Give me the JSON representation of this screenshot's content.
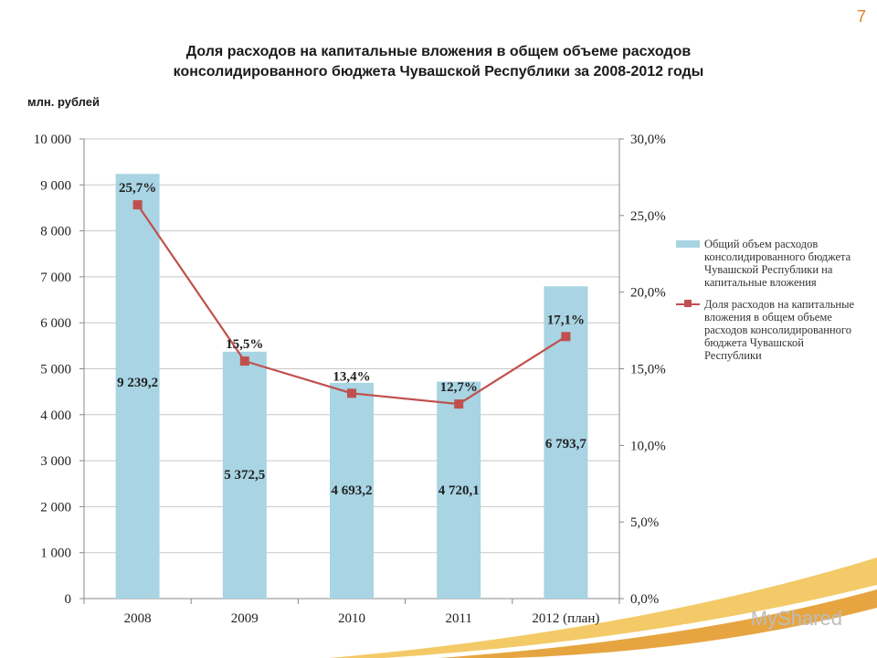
{
  "page_number": "7",
  "title_line1": "Доля расходов на капитальные вложения в общем объеме расходов",
  "title_line2": "консолидированного бюджета Чувашской Республики за 2008-2012 годы",
  "unit_label": "млн. рублей",
  "watermark": "MyShared",
  "colors": {
    "bar": "#a8d4e3",
    "line": "#c0504d",
    "grid": "#c8c8c8",
    "accent": "#d9822b"
  },
  "chart_data": {
    "type": "bar",
    "categories": [
      "2008",
      "2009",
      "2010",
      "2011",
      "2012  (план)"
    ],
    "series": [
      {
        "name": "Общий объем расходов консолидированного бюджета Чувашской Республики на капитальные вложения",
        "type": "bar",
        "axis": "left",
        "values": [
          9239.2,
          5372.5,
          4693.2,
          4720.1,
          6793.7
        ],
        "labels": [
          "9 239,2",
          "5 372,5",
          "4 693,2",
          "4 720,1",
          "6 793,7"
        ]
      },
      {
        "name": "Доля расходов на капитальные вложения в общем объеме расходов консолидированного бюджета Чувашской Республики",
        "type": "line",
        "axis": "right",
        "values": [
          25.7,
          15.5,
          13.4,
          12.7,
          17.1
        ],
        "labels": [
          "25,7%",
          "15,5%",
          "13,4%",
          "12,7%",
          "17,1%"
        ]
      }
    ],
    "ylabel": "млн. рублей",
    "ylim": [
      0,
      10000
    ],
    "y_ticks": [
      "0",
      "1 000",
      "2 000",
      "3 000",
      "4 000",
      "5 000",
      "6 000",
      "7 000",
      "8 000",
      "9 000",
      "10 000"
    ],
    "y2lim": [
      0,
      30
    ],
    "y2_ticks": [
      "0,0%",
      "5,0%",
      "10,0%",
      "15,0%",
      "20,0%",
      "25,0%",
      "30,0%"
    ],
    "grid": true,
    "legend_position": "right"
  }
}
